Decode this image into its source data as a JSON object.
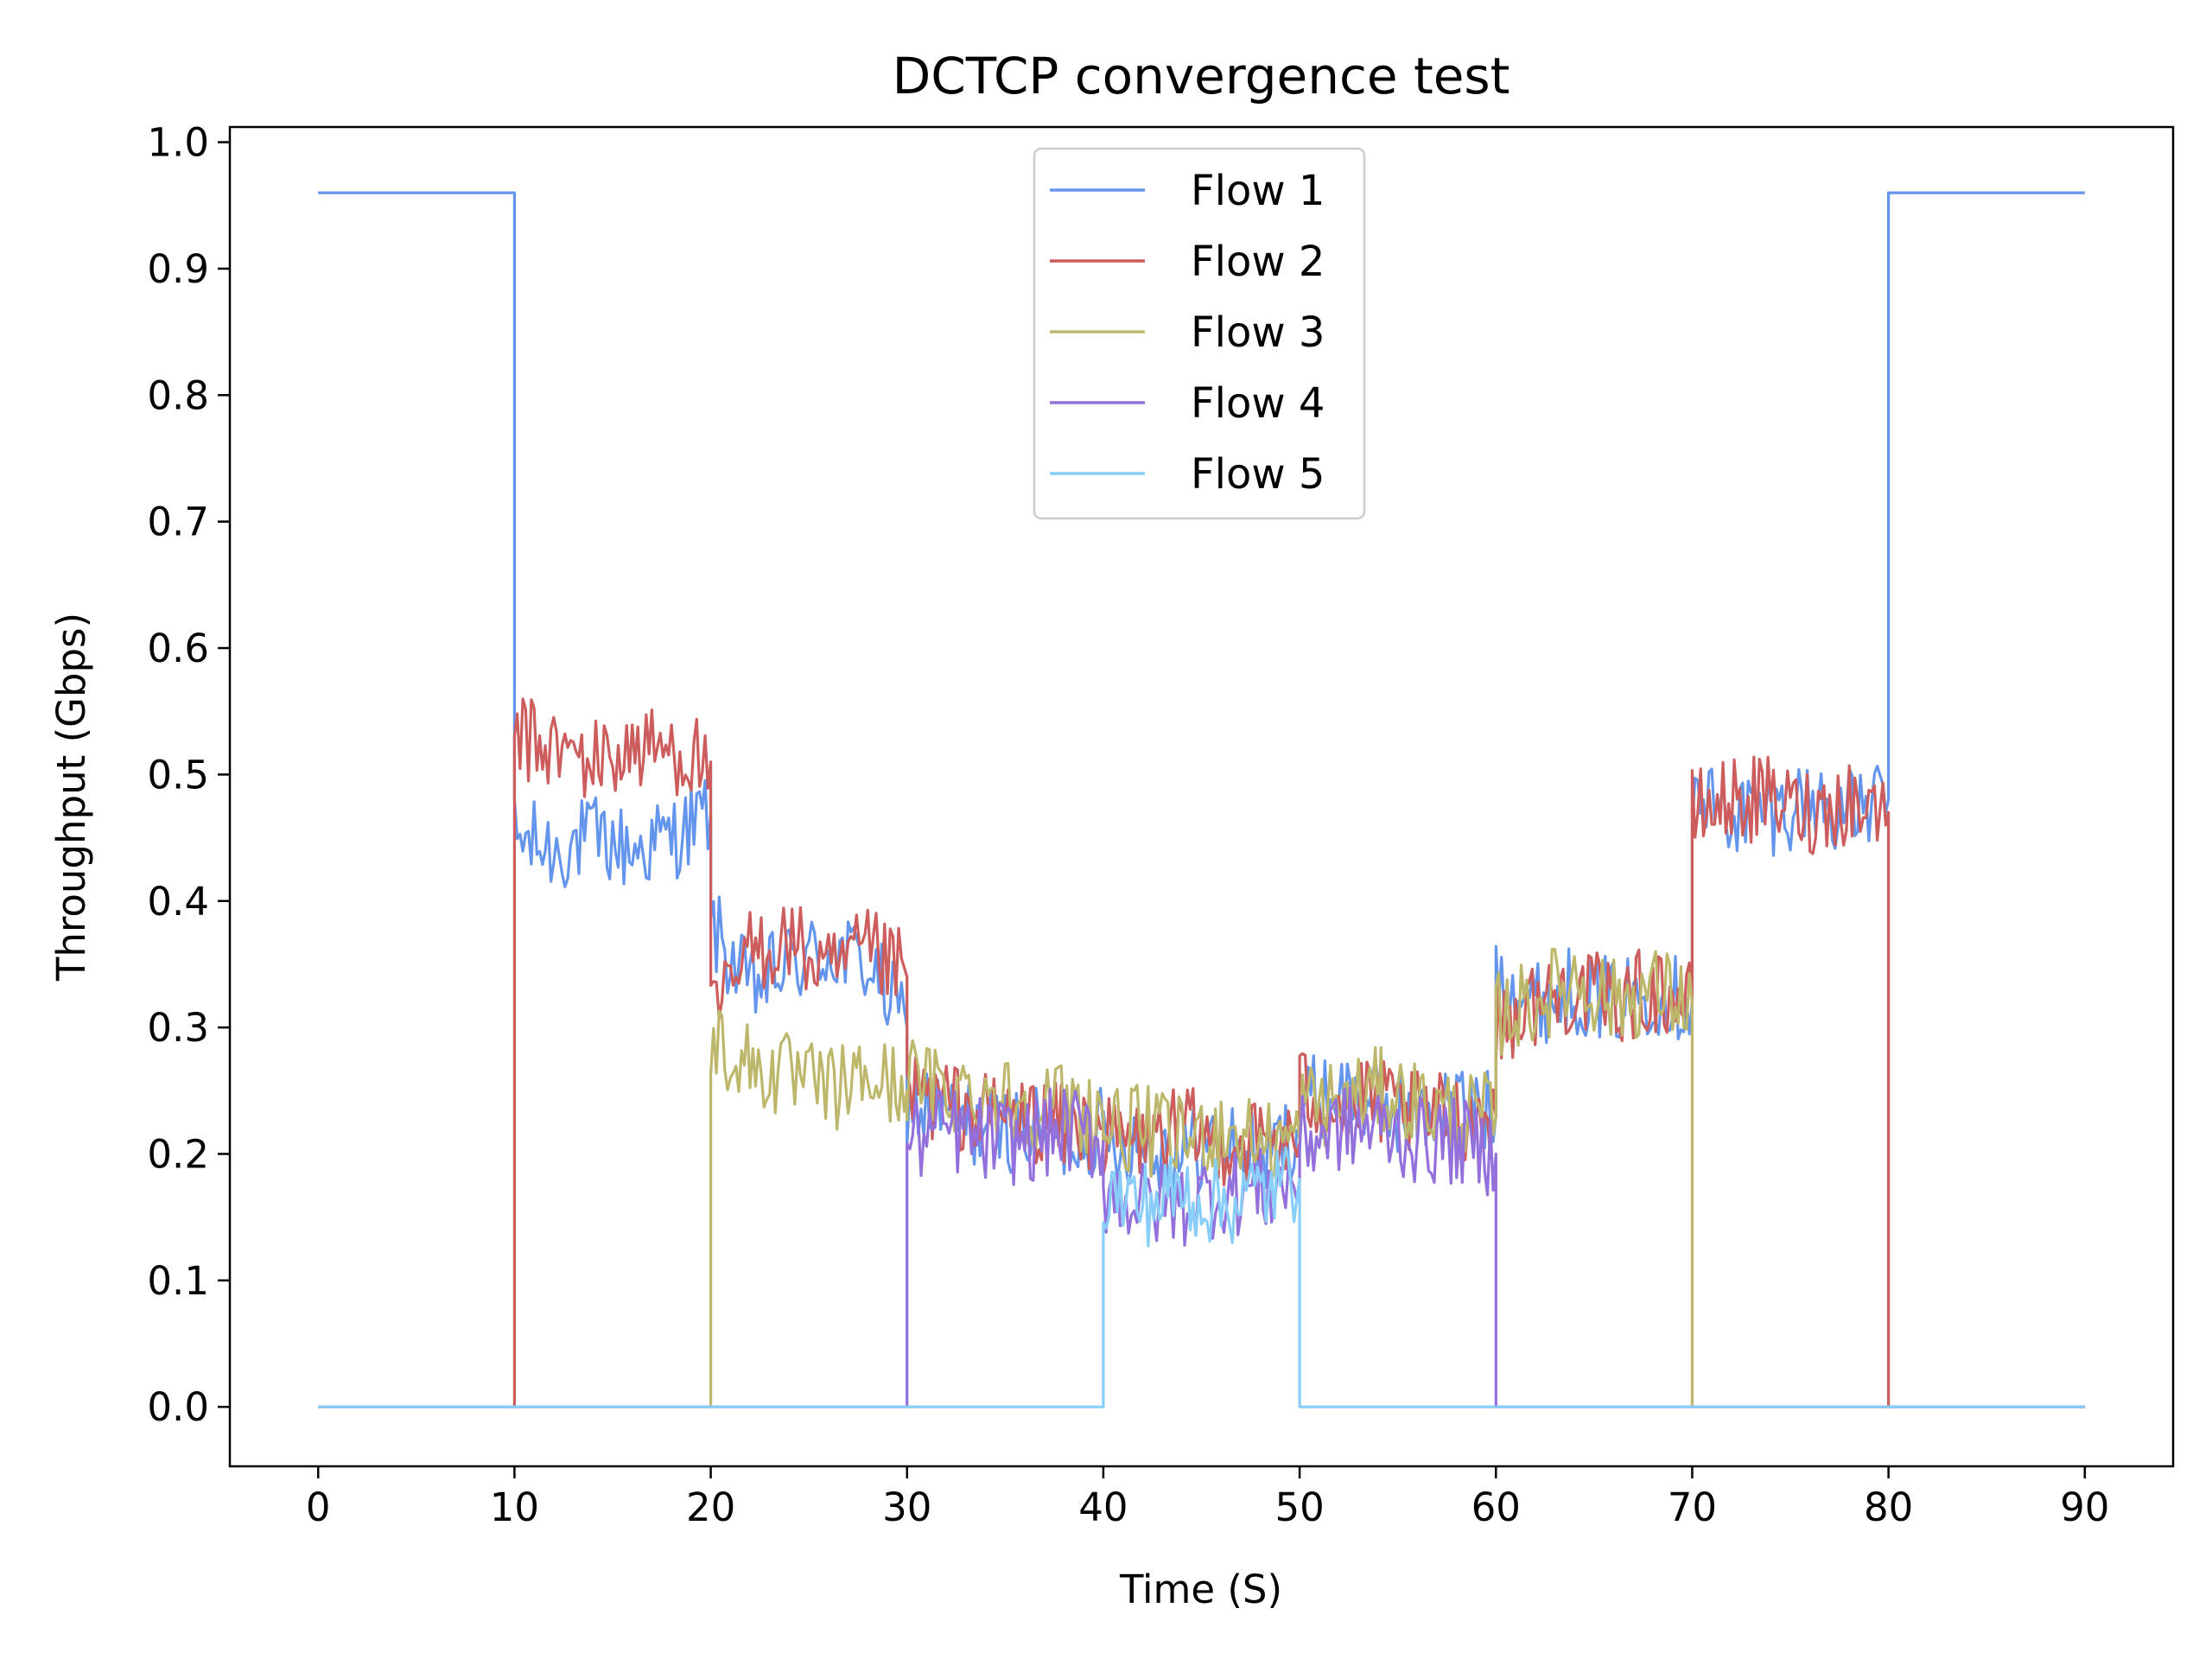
{
  "chart_data": {
    "type": "line",
    "title": "DCTCP convergence test",
    "xlabel": "Time (S)",
    "ylabel": "Throughput (Gbps)",
    "xlim": [
      -4.5,
      94.5
    ],
    "ylim": [
      -0.047,
      1.012
    ],
    "xticks": [
      0,
      10,
      20,
      30,
      40,
      50,
      60,
      70,
      80,
      90
    ],
    "xtick_labels": [
      "0",
      "10",
      "20",
      "30",
      "40",
      "50",
      "60",
      "70",
      "80",
      "90"
    ],
    "yticks": [
      0.0,
      0.1,
      0.2,
      0.3,
      0.4,
      0.5,
      0.6,
      0.7,
      0.8,
      0.9,
      1.0
    ],
    "ytick_labels": [
      "0.0",
      "0.1",
      "0.2",
      "0.3",
      "0.4",
      "0.5",
      "0.6",
      "0.7",
      "0.8",
      "0.9",
      "1.0"
    ],
    "grid": false,
    "legend_position": "top-center",
    "series": [
      {
        "name": "Flow 1",
        "color": "#6495ed",
        "x": [
          0,
          10,
          10,
          12,
          14,
          16,
          18,
          20,
          20,
          22,
          24,
          26,
          28,
          30,
          30,
          32,
          34,
          36,
          38,
          40,
          40,
          42,
          44,
          46,
          48,
          50,
          50,
          52,
          54,
          56,
          58,
          60,
          60,
          62,
          64,
          66,
          68,
          70,
          70,
          72,
          74,
          76,
          78,
          80,
          80,
          90
        ],
        "y": [
          0.96,
          0.96,
          0.45,
          0.44,
          0.45,
          0.44,
          0.45,
          0.47,
          0.38,
          0.33,
          0.35,
          0.36,
          0.35,
          0.3,
          0.24,
          0.23,
          0.22,
          0.22,
          0.21,
          0.22,
          0.21,
          0.21,
          0.2,
          0.21,
          0.2,
          0.22,
          0.24,
          0.25,
          0.24,
          0.23,
          0.24,
          0.23,
          0.35,
          0.32,
          0.33,
          0.32,
          0.33,
          0.32,
          0.48,
          0.47,
          0.47,
          0.48,
          0.47,
          0.48,
          0.96,
          0.96
        ]
      },
      {
        "name": "Flow 2",
        "color": "#cd5c5c",
        "x": [
          0,
          10,
          10,
          12,
          14,
          16,
          18,
          20,
          20,
          22,
          24,
          26,
          28,
          30,
          30,
          32,
          34,
          36,
          38,
          40,
          40,
          42,
          44,
          46,
          48,
          50,
          50,
          52,
          54,
          56,
          58,
          60,
          60,
          62,
          64,
          66,
          68,
          70,
          70,
          72,
          74,
          76,
          78,
          80,
          80,
          90
        ],
        "y": [
          0.0,
          0.0,
          0.53,
          0.52,
          0.51,
          0.52,
          0.52,
          0.51,
          0.3,
          0.36,
          0.37,
          0.34,
          0.36,
          0.34,
          0.25,
          0.24,
          0.23,
          0.23,
          0.22,
          0.22,
          0.21,
          0.21,
          0.22,
          0.21,
          0.21,
          0.21,
          0.25,
          0.24,
          0.24,
          0.23,
          0.23,
          0.23,
          0.3,
          0.32,
          0.33,
          0.32,
          0.33,
          0.32,
          0.47,
          0.48,
          0.48,
          0.47,
          0.48,
          0.47,
          0.0,
          0.0
        ]
      },
      {
        "name": "Flow 3",
        "color": "#bdb76b",
        "x": [
          0,
          20,
          20,
          22,
          24,
          26,
          28,
          30,
          30,
          32,
          34,
          36,
          38,
          40,
          40,
          42,
          44,
          46,
          48,
          50,
          50,
          52,
          54,
          56,
          58,
          60,
          60,
          62,
          64,
          66,
          68,
          70,
          70,
          90
        ],
        "y": [
          0.0,
          0.0,
          0.29,
          0.27,
          0.26,
          0.25,
          0.26,
          0.25,
          0.26,
          0.25,
          0.25,
          0.24,
          0.24,
          0.23,
          0.22,
          0.22,
          0.21,
          0.22,
          0.21,
          0.21,
          0.24,
          0.24,
          0.25,
          0.24,
          0.23,
          0.23,
          0.31,
          0.32,
          0.34,
          0.32,
          0.33,
          0.32,
          0.0,
          0.0
        ]
      },
      {
        "name": "Flow 4",
        "color": "#9370db",
        "x": [
          0,
          30,
          30,
          32,
          34,
          36,
          38,
          40,
          40,
          42,
          44,
          46,
          48,
          50,
          50,
          52,
          54,
          56,
          58,
          60,
          60,
          90
        ],
        "y": [
          0.0,
          0.0,
          0.21,
          0.22,
          0.21,
          0.21,
          0.22,
          0.21,
          0.17,
          0.16,
          0.16,
          0.17,
          0.17,
          0.18,
          0.21,
          0.22,
          0.22,
          0.21,
          0.21,
          0.2,
          0.0,
          0.0
        ]
      },
      {
        "name": "Flow 5",
        "color": "#87cefa",
        "x": [
          0,
          40,
          40,
          42,
          44,
          46,
          48,
          50,
          50,
          90
        ],
        "y": [
          0.0,
          0.0,
          0.17,
          0.16,
          0.17,
          0.16,
          0.17,
          0.18,
          0.0,
          0.0
        ]
      }
    ]
  }
}
